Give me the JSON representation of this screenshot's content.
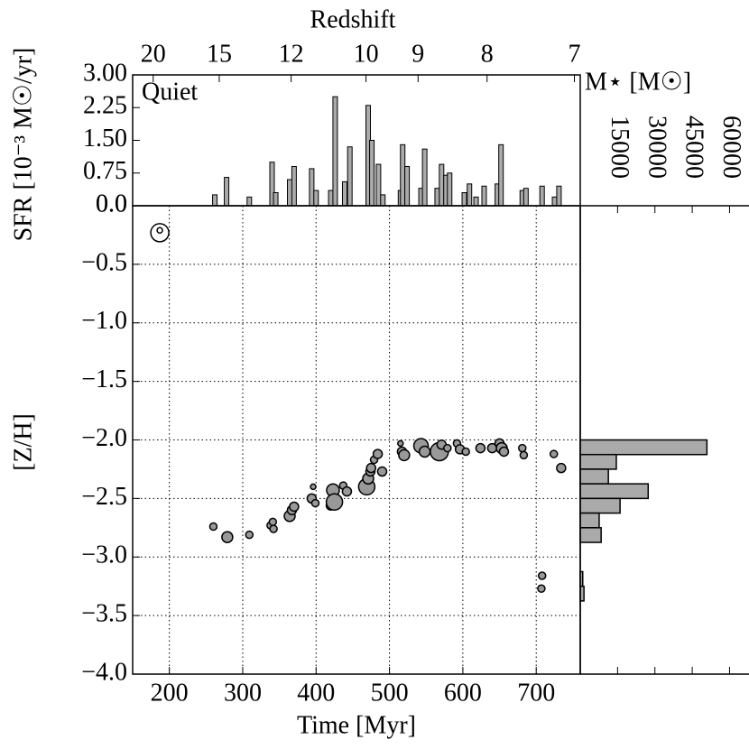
{
  "chart_data": [
    {
      "type": "bar",
      "ylabel": "SFR [10⁻³ M☉/yr]",
      "annotation": "Quiet",
      "x2label": "Redshift",
      "x2ticks": [
        {
          "value": 178,
          "label": "20"
        },
        {
          "value": 268,
          "label": "15"
        },
        {
          "value": 366,
          "label": "12"
        },
        {
          "value": 468,
          "label": "10"
        },
        {
          "value": 539,
          "label": "9"
        },
        {
          "value": 633,
          "label": "8"
        },
        {
          "value": 752,
          "label": "7"
        }
      ],
      "x": [
        262,
        278,
        309,
        340,
        345,
        364,
        370,
        394,
        400,
        420,
        426,
        439,
        446,
        471,
        476,
        485,
        491,
        515,
        518,
        524,
        543,
        548,
        565,
        571,
        577,
        582,
        602,
        609,
        618,
        629,
        647,
        652,
        681,
        686,
        708,
        725,
        731
      ],
      "values": [
        0.25,
        0.65,
        0.2,
        1.0,
        0.3,
        0.6,
        0.9,
        0.85,
        0.35,
        0.35,
        2.5,
        0.55,
        1.35,
        2.3,
        1.5,
        0.95,
        0.25,
        0.35,
        1.4,
        0.9,
        0.4,
        1.3,
        0.4,
        0.95,
        0.7,
        0.75,
        0.3,
        0.5,
        0.2,
        0.45,
        0.5,
        1.4,
        0.35,
        0.4,
        0.45,
        0.2,
        0.45
      ],
      "color": "#aaaaaa",
      "xlim": [
        150,
        760
      ],
      "ylim": [
        0,
        3
      ],
      "yticks": [
        {
          "value": 0,
          "label": "0.0"
        },
        {
          "value": 0.75,
          "label": "0.75"
        },
        {
          "value": 1.5,
          "label": "1.50"
        },
        {
          "value": 2.25,
          "label": "2.25"
        },
        {
          "value": 3,
          "label": "3.00"
        }
      ]
    },
    {
      "type": "scatter",
      "xlabel": "Time [Myr]",
      "ylabel": "[Z/H]",
      "xlim": [
        150,
        760
      ],
      "ylim": [
        -4,
        0
      ],
      "xticks": [
        200,
        300,
        400,
        500,
        600,
        700
      ],
      "yticks": [
        {
          "value": 0,
          "label": "0.0"
        },
        {
          "value": -0.5,
          "label": "−0.5"
        },
        {
          "value": -1,
          "label": "−1.0"
        },
        {
          "value": -1.5,
          "label": "−1.5"
        },
        {
          "value": -2,
          "label": "−2.0"
        },
        {
          "value": -2.5,
          "label": "−2.5"
        },
        {
          "value": -3,
          "label": "−3.0"
        },
        {
          "value": -3.5,
          "label": "−3.5"
        },
        {
          "value": -4,
          "label": "−4.0"
        }
      ],
      "grid": true,
      "series": [
        {
          "color": "#999999",
          "x": [
            260,
            279,
            309,
            338,
            341,
            342,
            364,
            367,
            370,
            394,
            396,
            399,
            420,
            423,
            425,
            437,
            442,
            469,
            471,
            474,
            475,
            479,
            484,
            490,
            515,
            517,
            520,
            543,
            548,
            568,
            571,
            579,
            592,
            596,
            604,
            624,
            640,
            650,
            653,
            656,
            681,
            683,
            724,
            734,
            708,
            707
          ],
          "values": [
            -2.74,
            -2.83,
            -2.81,
            -2.73,
            -2.7,
            -2.76,
            -2.65,
            -2.6,
            -2.57,
            -2.5,
            -2.4,
            -2.54,
            -2.56,
            -2.43,
            -2.53,
            -2.39,
            -2.44,
            -2.4,
            -2.33,
            -2.27,
            -2.24,
            -2.17,
            -2.12,
            -2.27,
            -2.03,
            -2.1,
            -2.13,
            -2.05,
            -2.1,
            -2.1,
            -2.04,
            -2.07,
            -2.03,
            -2.08,
            -2.1,
            -2.07,
            -2.07,
            -2.03,
            -2.07,
            -2.1,
            -2.07,
            -2.13,
            -2.12,
            -2.24,
            -3.16,
            -3.27
          ],
          "sizes": [
            4,
            6,
            4,
            4,
            4,
            4,
            6,
            5,
            5,
            5,
            3,
            4,
            5,
            7,
            9,
            4,
            5,
            9,
            6,
            5,
            5,
            4,
            5,
            5,
            3,
            5,
            6,
            8,
            6,
            10,
            5,
            4,
            4,
            5,
            4,
            5,
            5,
            5,
            6,
            5,
            4,
            4,
            4,
            5,
            4,
            4
          ]
        },
        {
          "color": "#ffffff",
          "x": [
            187,
            187
          ],
          "values": [
            -0.23,
            -0.21
          ],
          "sizes": [
            10,
            3
          ]
        }
      ]
    },
    {
      "type": "histogram",
      "orientation": "horizontal",
      "xlabel": "M⋆ [M☉]",
      "bins": [
        -2.0,
        -2.125,
        -2.25,
        -2.375,
        -2.5,
        -2.625,
        -2.75,
        -2.875,
        -3.0,
        -3.125,
        -3.25,
        -3.375
      ],
      "values": [
        50900,
        14500,
        11300,
        27300,
        16000,
        7600,
        8400,
        0,
        0,
        1000,
        1500
      ],
      "color": "#aaaaaa",
      "xlim": [
        0,
        66000
      ],
      "xticks": [
        15000,
        30000,
        45000,
        60000
      ],
      "ylim": [
        -4,
        0
      ]
    }
  ]
}
